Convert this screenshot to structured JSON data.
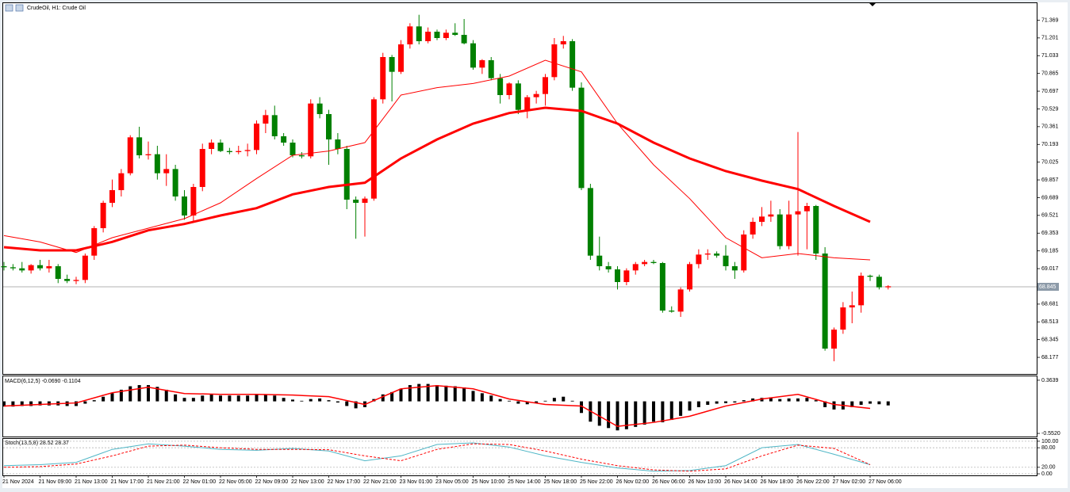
{
  "chart_data": [
    {
      "type": "candlestick",
      "title": "CrudeOil, H1: Crude Oil",
      "x_labels": [
        "21 Nov 2024",
        "21 Nov 09:00",
        "21 Nov 13:00",
        "21 Nov 17:00",
        "21 Nov 21:00",
        "22 Nov 01:00",
        "22 Nov 05:00",
        "22 Nov 09:00",
        "22 Nov 13:00",
        "22 Nov 17:00",
        "22 Nov 21:00",
        "23 Nov 01:00",
        "23 Nov 05:00",
        "25 Nov 10:00",
        "25 Nov 14:00",
        "25 Nov 18:00",
        "25 Nov 22:00",
        "26 Nov 02:00",
        "26 Nov 06:00",
        "26 Nov 10:00",
        "26 Nov 14:00",
        "26 Nov 18:00",
        "26 Nov 22:00",
        "27 Nov 02:00",
        "27 Nov 06:00"
      ],
      "candles": [
        [
          69.04,
          69.08,
          69.0,
          69.03
        ],
        [
          69.03,
          69.06,
          69.0,
          69.02
        ],
        [
          69.02,
          69.08,
          68.98,
          69.0
        ],
        [
          69.0,
          69.06,
          68.97,
          69.05
        ],
        [
          69.05,
          69.1,
          69.0,
          69.02
        ],
        [
          69.02,
          69.1,
          68.98,
          69.04
        ],
        [
          69.04,
          69.06,
          68.88,
          68.92
        ],
        [
          68.92,
          68.96,
          68.88,
          68.9
        ],
        [
          68.9,
          68.94,
          68.87,
          68.91
        ],
        [
          68.91,
          69.16,
          68.88,
          69.14
        ],
        [
          69.14,
          69.42,
          69.1,
          69.4
        ],
        [
          69.4,
          69.66,
          69.36,
          69.64
        ],
        [
          69.64,
          69.86,
          69.6,
          69.76
        ],
        [
          69.76,
          69.96,
          69.7,
          69.92
        ],
        [
          69.92,
          70.28,
          69.9,
          70.26
        ],
        [
          70.26,
          70.36,
          70.06,
          70.09
        ],
        [
          70.09,
          70.22,
          70.05,
          70.1
        ],
        [
          70.1,
          70.18,
          69.86,
          69.92
        ],
        [
          69.92,
          70.1,
          69.8,
          69.96
        ],
        [
          69.96,
          70.0,
          69.66,
          69.7
        ],
        [
          69.7,
          69.76,
          69.48,
          69.52
        ],
        [
          69.52,
          69.82,
          69.46,
          69.79
        ],
        [
          69.79,
          70.2,
          69.75,
          70.15
        ],
        [
          70.15,
          70.24,
          70.1,
          70.21
        ],
        [
          70.21,
          70.24,
          70.12,
          70.13
        ],
        [
          70.13,
          70.16,
          70.1,
          70.12
        ],
        [
          70.12,
          70.18,
          70.1,
          70.13
        ],
        [
          70.13,
          70.2,
          70.08,
          70.14
        ],
        [
          70.14,
          70.42,
          70.1,
          70.39
        ],
        [
          70.39,
          70.52,
          70.3,
          70.47
        ],
        [
          70.47,
          70.56,
          70.24,
          70.27
        ],
        [
          70.27,
          70.3,
          70.18,
          70.21
        ],
        [
          70.21,
          70.24,
          70.07,
          70.09
        ],
        [
          70.09,
          70.12,
          70.06,
          70.08
        ],
        [
          70.08,
          70.62,
          70.06,
          70.58
        ],
        [
          70.58,
          70.64,
          70.44,
          70.48
        ],
        [
          70.48,
          70.52,
          70.0,
          70.24
        ],
        [
          70.24,
          70.3,
          70.1,
          70.15
        ],
        [
          70.15,
          70.18,
          69.58,
          69.67
        ],
        [
          69.67,
          69.7,
          69.3,
          69.64
        ],
        [
          69.64,
          69.7,
          69.32,
          69.68
        ],
        [
          69.68,
          70.64,
          69.66,
          70.62
        ],
        [
          70.62,
          71.06,
          70.58,
          71.02
        ],
        [
          71.02,
          71.04,
          70.6,
          70.88
        ],
        [
          70.88,
          71.18,
          70.86,
          71.14
        ],
        [
          71.14,
          71.34,
          71.1,
          71.31
        ],
        [
          71.31,
          71.42,
          71.14,
          71.17
        ],
        [
          71.17,
          71.3,
          71.15,
          71.26
        ],
        [
          71.26,
          71.28,
          71.18,
          71.2
        ],
        [
          71.2,
          71.28,
          71.18,
          71.25
        ],
        [
          71.25,
          71.34,
          71.22,
          71.23
        ],
        [
          71.23,
          71.38,
          71.14,
          71.15
        ],
        [
          71.15,
          71.18,
          70.9,
          70.92
        ],
        [
          70.92,
          71.0,
          70.86,
          70.99
        ],
        [
          70.99,
          71.02,
          70.8,
          70.82
        ],
        [
          70.82,
          70.86,
          70.58,
          70.66
        ],
        [
          70.66,
          70.78,
          70.62,
          70.77
        ],
        [
          70.77,
          70.8,
          70.48,
          70.52
        ],
        [
          70.52,
          70.66,
          70.44,
          70.64
        ],
        [
          70.64,
          70.7,
          70.58,
          70.67
        ],
        [
          70.67,
          70.86,
          70.56,
          70.83
        ],
        [
          70.83,
          71.2,
          70.8,
          71.14
        ],
        [
          71.14,
          71.22,
          71.1,
          71.17
        ],
        [
          71.17,
          71.19,
          70.7,
          70.73
        ],
        [
          70.73,
          70.78,
          69.76,
          69.78
        ],
        [
          69.78,
          69.82,
          69.1,
          69.14
        ],
        [
          69.14,
          69.32,
          69.0,
          69.04
        ],
        [
          69.04,
          69.08,
          68.98,
          69.01
        ],
        [
          69.01,
          69.04,
          68.82,
          68.89
        ],
        [
          68.89,
          69.02,
          68.86,
          69.0
        ],
        [
          69.0,
          69.08,
          68.96,
          69.06
        ],
        [
          69.06,
          69.1,
          69.04,
          69.08
        ],
        [
          69.08,
          69.1,
          69.06,
          69.07
        ],
        [
          69.07,
          69.08,
          68.6,
          68.62
        ],
        [
          68.62,
          68.66,
          68.6,
          68.61
        ],
        [
          68.61,
          68.84,
          68.56,
          68.82
        ],
        [
          68.82,
          69.08,
          68.8,
          69.06
        ],
        [
          69.06,
          69.2,
          69.02,
          69.15
        ],
        [
          69.15,
          69.2,
          69.1,
          69.16
        ],
        [
          69.16,
          69.18,
          69.12,
          69.14
        ],
        [
          69.14,
          69.24,
          69.0,
          69.04
        ],
        [
          69.04,
          69.08,
          68.92,
          69.0
        ],
        [
          69.0,
          69.38,
          68.98,
          69.34
        ],
        [
          69.34,
          69.5,
          69.3,
          69.46
        ],
        [
          69.46,
          69.6,
          69.42,
          69.51
        ],
        [
          69.51,
          69.66,
          69.46,
          69.53
        ],
        [
          69.53,
          69.58,
          69.2,
          69.23
        ],
        [
          69.23,
          69.66,
          69.2,
          69.53
        ],
        [
          69.53,
          70.31,
          69.14,
          69.56
        ],
        [
          69.56,
          69.64,
          69.2,
          69.61
        ],
        [
          69.61,
          69.62,
          69.1,
          69.16
        ],
        [
          69.16,
          69.22,
          68.24,
          68.26
        ],
        [
          68.26,
          68.46,
          68.14,
          68.44
        ],
        [
          68.44,
          68.7,
          68.4,
          68.65
        ],
        [
          68.65,
          68.8,
          68.5,
          68.67
        ],
        [
          68.67,
          68.98,
          68.6,
          68.95
        ],
        [
          68.95,
          68.96,
          68.9,
          68.94
        ],
        [
          68.94,
          68.96,
          68.82,
          68.84
        ],
        [
          68.84,
          68.86,
          68.82,
          68.85
        ]
      ],
      "up_color": "#ff0000",
      "down_color": "#008000",
      "lines": [
        {
          "color": "#ff0000",
          "width": 1,
          "values": [
            69.33,
            69.27,
            69.17,
            69.31,
            69.4,
            69.49,
            69.64,
            69.87,
            70.09,
            70.13,
            70.21,
            70.66,
            70.73,
            70.77,
            70.84,
            70.99,
            70.88,
            70.39,
            70.0,
            69.68,
            69.31,
            69.12,
            69.16,
            69.12,
            69.1
          ]
        },
        {
          "color": "#ff0000",
          "width": 3,
          "values": [
            69.22,
            69.19,
            69.19,
            69.27,
            69.38,
            69.44,
            69.52,
            69.59,
            69.72,
            69.79,
            69.83,
            70.06,
            70.24,
            70.39,
            70.49,
            70.54,
            70.51,
            70.39,
            70.21,
            70.06,
            69.94,
            69.85,
            69.77,
            69.61,
            69.46
          ]
        }
      ],
      "current_price": 68.845,
      "ylim": [
        68.02,
        71.53
      ],
      "yticks": [
        68.177,
        68.345,
        68.513,
        68.681,
        69.017,
        69.185,
        69.353,
        69.521,
        69.689,
        69.857,
        70.025,
        70.193,
        70.361,
        70.529,
        70.697,
        70.865,
        71.033,
        71.201,
        71.369
      ]
    },
    {
      "type": "macd",
      "title": "MACD(6,12,5) -0.0690 -0.1104",
      "histogram": {
        "color": "#000000",
        "values": [
          -0.09,
          -0.09,
          -0.08,
          -0.08,
          -0.07,
          -0.07,
          -0.07,
          -0.08,
          -0.08,
          -0.04,
          0.02,
          0.08,
          0.14,
          0.2,
          0.26,
          0.28,
          0.28,
          0.25,
          0.2,
          0.12,
          0.06,
          0.06,
          0.1,
          0.12,
          0.1,
          0.1,
          0.1,
          0.1,
          0.12,
          0.12,
          0.1,
          0.06,
          0.03,
          0.01,
          0.04,
          0.05,
          0.02,
          -0.02,
          -0.08,
          -0.12,
          -0.1,
          0.04,
          0.12,
          0.16,
          0.22,
          0.28,
          0.3,
          0.3,
          0.28,
          0.27,
          0.26,
          0.24,
          0.18,
          0.14,
          0.1,
          0.04,
          0.01,
          -0.04,
          -0.05,
          -0.03,
          0.01,
          0.06,
          0.08,
          0.01,
          -0.2,
          -0.35,
          -0.42,
          -0.46,
          -0.5,
          -0.48,
          -0.44,
          -0.4,
          -0.35,
          -0.36,
          -0.32,
          -0.25,
          -0.16,
          -0.1,
          -0.06,
          -0.04,
          -0.03,
          -0.02,
          0.02,
          0.05,
          0.06,
          0.07,
          0.04,
          0.05,
          0.05,
          0.06,
          0.02,
          -0.1,
          -0.14,
          -0.14,
          -0.1,
          -0.06,
          -0.04,
          -0.05,
          -0.07
        ]
      },
      "signal": {
        "color": "#ff0000",
        "values": [
          -0.08,
          -0.054,
          -0.027,
          0.148,
          0.243,
          0.135,
          0.121,
          0.121,
          0.108,
          0.081,
          -0.054,
          0.216,
          0.27,
          0.216,
          0.04,
          -0.054,
          -0.08,
          -0.43,
          -0.363,
          -0.256,
          -0.08,
          0.04,
          0.121,
          -0.054,
          -0.121
        ]
      },
      "ylim": [
        -0.606,
        0.431
      ],
      "yticks": [
        0.3639,
        {
          "value": -0.552,
          "label": "-0.5520"
        }
      ]
    },
    {
      "type": "stoch",
      "title": "Stoch(13,5,8) 28.52 28.37",
      "series": [
        {
          "color": "#4fb6c6",
          "dashed": false,
          "values": [
            25,
            28,
            35,
            75,
            92,
            85,
            75,
            72,
            78,
            70,
            40,
            55,
            90,
            95,
            82,
            55,
            35,
            18,
            8,
            10,
            25,
            80,
            90,
            60,
            28
          ]
        },
        {
          "color": "#ff0000",
          "dashed": true,
          "values": [
            20,
            22,
            30,
            55,
            85,
            88,
            80,
            75,
            75,
            74,
            55,
            40,
            75,
            92,
            90,
            70,
            45,
            25,
            12,
            8,
            15,
            55,
            88,
            78,
            28
          ]
        }
      ],
      "ylim": [
        -4.8,
        107.1
      ],
      "yticks": [
        {
          "value": 100,
          "label": "100.00"
        },
        {
          "value": 80,
          "label": "80.00"
        },
        {
          "value": 20,
          "label": "20.00"
        },
        {
          "value": 0,
          "label": "0.00"
        }
      ],
      "grid": true
    }
  ]
}
